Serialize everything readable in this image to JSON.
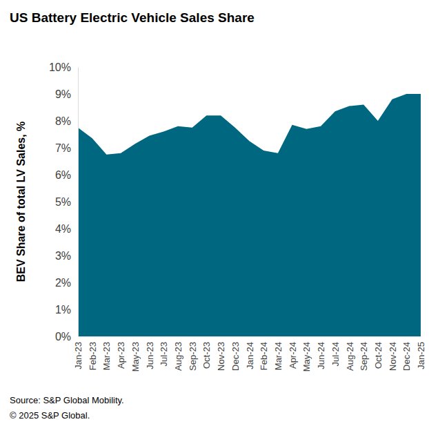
{
  "chart_data": {
    "type": "area",
    "title": "US Battery Electric Vehicle Sales Share",
    "y_label": "BEV Share of total LV Sales, %",
    "source": "Source: S&P Global Mobility.",
    "copyright": "© 2025 S&P Global.",
    "categories": [
      "Jan-23",
      "Feb-23",
      "Mar-23",
      "Apr-23",
      "May-23",
      "Jun-23",
      "Jul-23",
      "Aug-23",
      "Sep-23",
      "Oct-23",
      "Nov-23",
      "Dec-23",
      "Jan-24",
      "Feb-24",
      "Mar-24",
      "Apr-24",
      "May-24",
      "Jun-24",
      "Jul-24",
      "Aug-24",
      "Sep-24",
      "Oct-24",
      "Nov-24",
      "Dec-24",
      "Jan-25"
    ],
    "values": [
      7.75,
      7.35,
      6.75,
      6.8,
      7.15,
      7.45,
      7.6,
      7.8,
      7.75,
      8.2,
      8.2,
      7.75,
      7.25,
      6.9,
      6.8,
      7.85,
      7.7,
      7.8,
      8.35,
      8.55,
      8.6,
      8.0,
      8.8,
      9.0,
      9.0
    ],
    "color": "#006780",
    "ylim": [
      0,
      10
    ],
    "yticks": [
      {
        "value": 0,
        "label": "0%"
      },
      {
        "value": 1,
        "label": "1%"
      },
      {
        "value": 2,
        "label": "2%"
      },
      {
        "value": 3,
        "label": "3%"
      },
      {
        "value": 4,
        "label": "4%"
      },
      {
        "value": 5,
        "label": "5%"
      },
      {
        "value": 6,
        "label": "6%"
      },
      {
        "value": 7,
        "label": "7%"
      },
      {
        "value": 8,
        "label": "8%"
      },
      {
        "value": 9,
        "label": "9%"
      },
      {
        "value": 10,
        "label": "10%"
      }
    ],
    "grid": false
  }
}
